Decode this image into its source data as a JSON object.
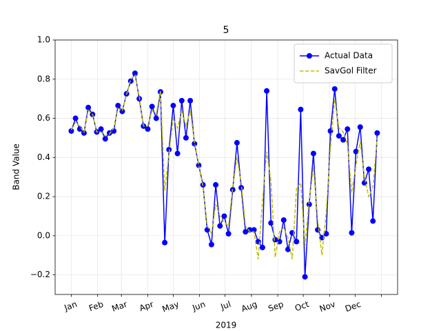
{
  "chart_data": {
    "type": "line",
    "title": "5",
    "x_label": "2019",
    "y_label": "Band Value",
    "x": [
      0,
      5,
      10,
      15,
      20,
      25,
      30,
      35,
      40,
      45,
      50,
      55,
      60,
      65,
      70,
      75,
      80,
      85,
      90,
      95,
      100,
      105,
      110,
      115,
      120,
      125,
      130,
      135,
      140,
      145,
      150,
      155,
      160,
      165,
      170,
      175,
      180,
      185,
      190,
      195,
      200,
      205,
      210,
      215,
      220,
      225,
      230,
      235,
      240,
      245,
      250,
      255,
      260,
      265,
      270,
      275,
      280,
      285,
      290,
      295,
      300,
      305,
      310,
      315,
      320,
      325,
      330,
      335,
      340,
      345,
      350,
      355,
      360
    ],
    "series": [
      {
        "name": "Actual Data",
        "color": "#0000ff",
        "linestyle": "solid",
        "marker": "o",
        "values": [
          0.535,
          0.6,
          0.545,
          0.525,
          0.655,
          0.62,
          0.53,
          0.545,
          0.495,
          0.525,
          0.535,
          0.665,
          0.635,
          0.725,
          0.79,
          0.83,
          0.7,
          0.56,
          0.545,
          0.66,
          0.6,
          0.735,
          -0.035,
          0.44,
          0.665,
          0.42,
          0.69,
          0.5,
          0.69,
          0.47,
          0.36,
          0.26,
          0.03,
          -0.045,
          0.26,
          0.05,
          0.1,
          0.01,
          0.235,
          0.475,
          0.245,
          0.02,
          0.03,
          0.03,
          -0.03,
          -0.06,
          0.74,
          0.065,
          -0.02,
          -0.03,
          0.08,
          -0.07,
          0.015,
          -0.03,
          0.645,
          -0.21,
          0.16,
          0.42,
          0.03,
          -0.01,
          0.01,
          0.535,
          0.75,
          0.51,
          0.49,
          0.545,
          0.015,
          0.43,
          0.555,
          0.27,
          0.34,
          0.075,
          0.525
        ]
      },
      {
        "name": "SavGol Filter",
        "color": "#bfbf00",
        "linestyle": "dashed",
        "marker": null,
        "values": [
          0.54,
          0.58,
          0.56,
          0.53,
          0.64,
          0.62,
          0.53,
          0.53,
          0.51,
          0.52,
          0.55,
          0.65,
          0.64,
          0.72,
          0.8,
          0.82,
          0.71,
          0.56,
          0.56,
          0.64,
          0.62,
          0.74,
          0.23,
          0.42,
          0.6,
          0.55,
          0.64,
          0.56,
          0.64,
          0.48,
          0.36,
          0.25,
          0.05,
          0.01,
          0.16,
          0.1,
          0.07,
          0.05,
          0.25,
          0.4,
          0.27,
          0.05,
          0.02,
          0.02,
          -0.12,
          0.18,
          0.43,
          0.28,
          -0.11,
          0.02,
          0.04,
          -0.01,
          -0.12,
          0.24,
          0.27,
          -0.05,
          0.18,
          0.35,
          0.08,
          -0.1,
          0.12,
          0.45,
          0.7,
          0.55,
          0.53,
          0.47,
          0.22,
          0.36,
          0.48,
          0.3,
          0.2,
          0.25,
          0.5
        ]
      }
    ],
    "xlim": [
      -19,
      384
    ],
    "xticks": [
      {
        "value": 0,
        "label": "Jan"
      },
      {
        "value": 31,
        "label": "Feb"
      },
      {
        "value": 59,
        "label": "Mar"
      },
      {
        "value": 90,
        "label": "Apr"
      },
      {
        "value": 120,
        "label": "May"
      },
      {
        "value": 151,
        "label": "Jun"
      },
      {
        "value": 181,
        "label": "Jul"
      },
      {
        "value": 212,
        "label": "Aug"
      },
      {
        "value": 243,
        "label": "Sep"
      },
      {
        "value": 273,
        "label": "Oct"
      },
      {
        "value": 304,
        "label": "Nov"
      },
      {
        "value": 334,
        "label": "Dec"
      },
      {
        "value": 365,
        "label": null
      }
    ],
    "ylim": [
      -0.3,
      1.0
    ],
    "yticks": [
      {
        "value": -0.2,
        "label": "−0.2"
      },
      {
        "value": 0,
        "label": "0.0"
      },
      {
        "value": 0.2,
        "label": "0.2"
      },
      {
        "value": 0.4,
        "label": "0.4"
      },
      {
        "value": 0.6,
        "label": "0.6"
      },
      {
        "value": 0.8,
        "label": "0.8"
      },
      {
        "value": 1.0,
        "label": "1.0"
      }
    ],
    "grid": true,
    "legend": "upper right"
  }
}
